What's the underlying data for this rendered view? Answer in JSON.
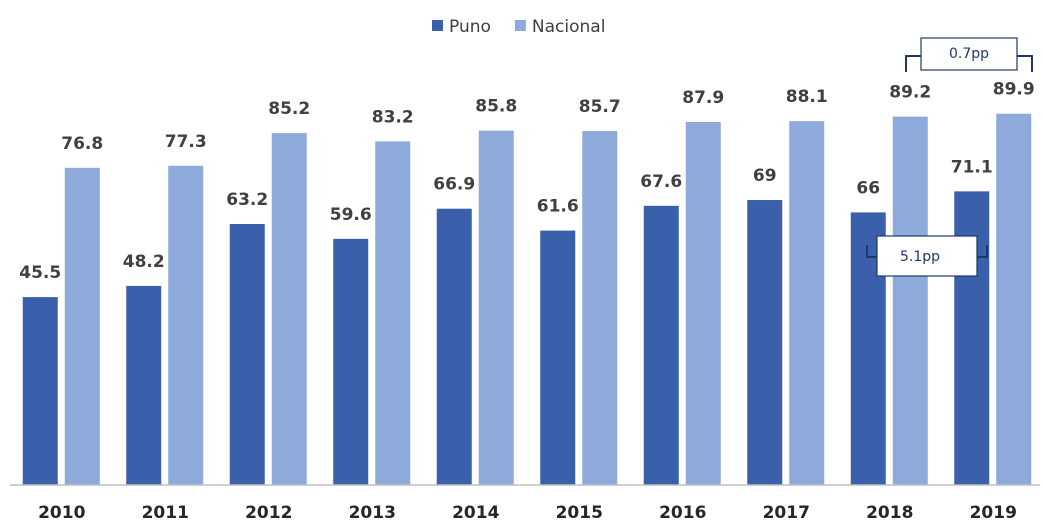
{
  "chart_data": {
    "type": "bar",
    "categories": [
      "2010",
      "2011",
      "2012",
      "2013",
      "2014",
      "2015",
      "2016",
      "2017",
      "2018",
      "2019"
    ],
    "series": [
      {
        "name": "Puno",
        "color": "#3a5fab",
        "values": [
          45.5,
          48.2,
          63.2,
          59.6,
          66.9,
          61.6,
          67.6,
          69,
          66,
          71.1
        ]
      },
      {
        "name": "Nacional",
        "color": "#8eaadb",
        "values": [
          76.8,
          77.3,
          85.2,
          83.2,
          85.8,
          85.7,
          87.9,
          88.1,
          89.2,
          89.9
        ]
      }
    ],
    "ylim": [
      0,
      100
    ],
    "annotations": [
      "0.7pp",
      "5.1pp"
    ]
  }
}
